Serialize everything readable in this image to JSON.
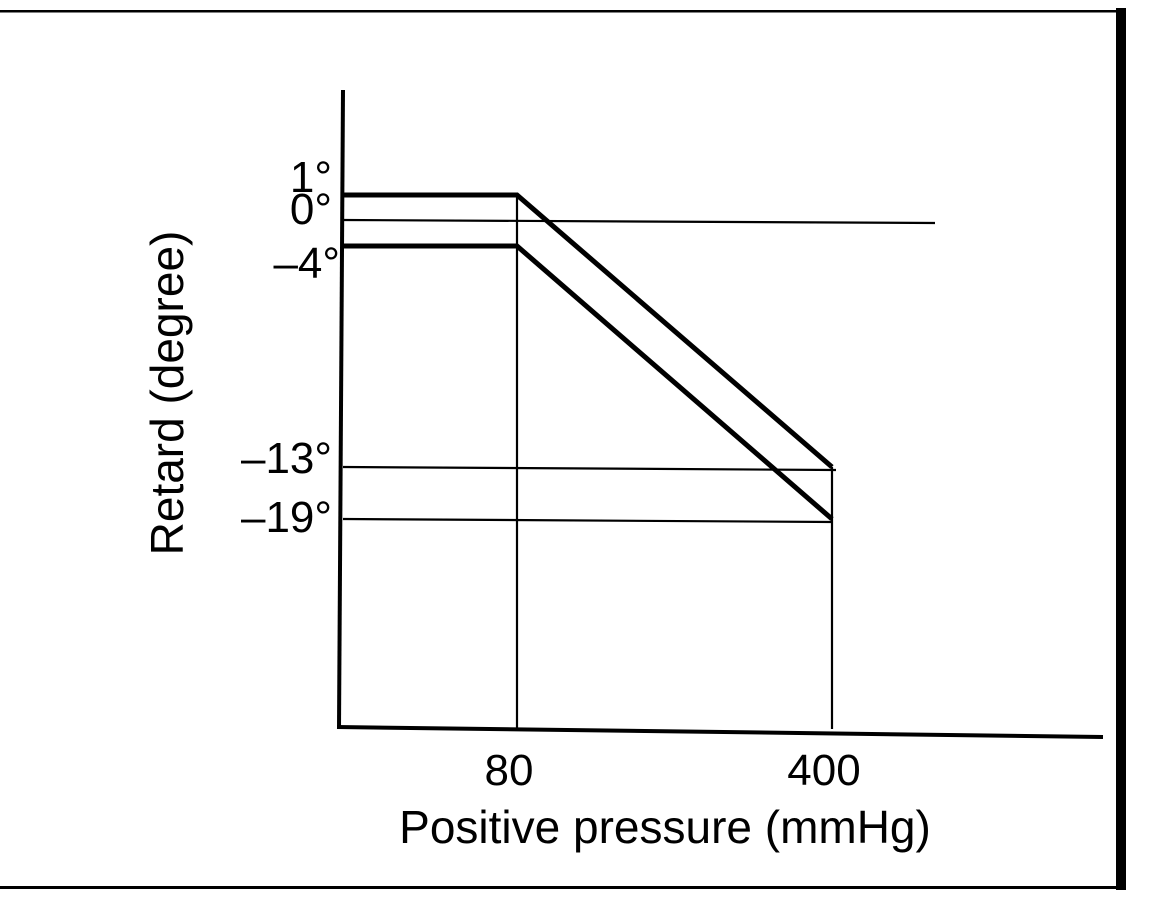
{
  "chart_data": {
    "type": "line",
    "title": "",
    "xlabel": "Positive pressure (mmHg)",
    "ylabel": "Retard (degree)",
    "x_ticks": [
      {
        "value": 80,
        "label": "80"
      },
      {
        "value": 400,
        "label": "400"
      }
    ],
    "y_ticks": [
      {
        "value": 1,
        "label": "1°"
      },
      {
        "value": 0,
        "label": "0°"
      },
      {
        "value": -4,
        "label": "–4°"
      },
      {
        "value": -13,
        "label": "–13°"
      },
      {
        "value": -19,
        "label": "–19°"
      }
    ],
    "series": [
      {
        "points": [
          {
            "x": 0,
            "y": 1
          },
          {
            "x": 80,
            "y": 1
          },
          {
            "x": 400,
            "y": -13
          }
        ]
      },
      {
        "points": [
          {
            "x": 0,
            "y": -4
          },
          {
            "x": 80,
            "y": -4
          },
          {
            "x": 400,
            "y": -19
          }
        ]
      }
    ],
    "reference_lines": {
      "horizontal": [
        0,
        -13,
        -19
      ],
      "vertical": [
        80,
        400
      ]
    },
    "legend": "none",
    "grid": false
  }
}
